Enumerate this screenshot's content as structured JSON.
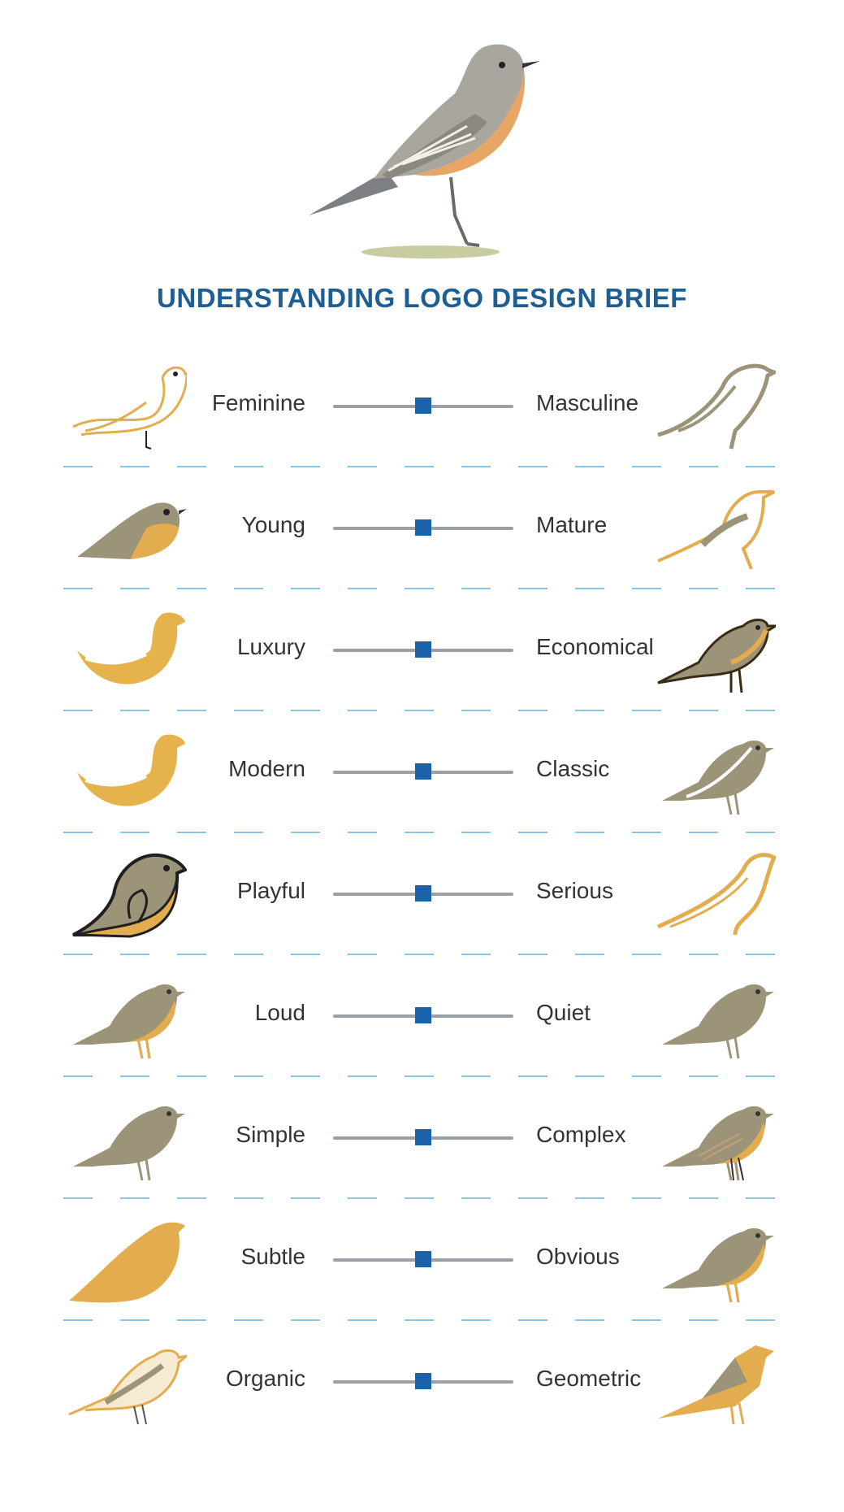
{
  "title": "UNDERSTANDING LOGO DESIGN BRIEF",
  "colors": {
    "title": "#1d5f93",
    "slider_track": "#9aa0a8",
    "slider_thumb": "#1b62a8",
    "divider": "#8cc5df",
    "bird_gold": "#e3ac4e",
    "bird_olive": "#9c9478"
  },
  "rows": [
    {
      "left": "Feminine",
      "right": "Masculine",
      "value": 0.5,
      "left_icon": "outline-gold-bird-icon",
      "right_icon": "outline-olive-bird-icon"
    },
    {
      "left": "Young",
      "right": "Mature",
      "value": 0.5,
      "left_icon": "chubby-bird-icon",
      "right_icon": "line-art-bird-icon"
    },
    {
      "left": "Luxury",
      "right": "Economical",
      "value": 0.5,
      "left_icon": "gradient-gold-bird-icon",
      "right_icon": "cartoon-bird-icon"
    },
    {
      "left": "Modern",
      "right": "Classic",
      "value": 0.5,
      "left_icon": "gradient-gold-bird-icon",
      "right_icon": "olive-wing-bird-icon"
    },
    {
      "left": "Playful",
      "right": "Serious",
      "value": 0.5,
      "left_icon": "playful-outline-bird-icon",
      "right_icon": "gold-stroke-bird-icon"
    },
    {
      "left": "Loud",
      "right": "Quiet",
      "value": 0.5,
      "left_icon": "two-tone-bird-icon",
      "right_icon": "olive-silhouette-bird-icon"
    },
    {
      "left": "Simple",
      "right": "Complex",
      "value": 0.5,
      "left_icon": "olive-silhouette-bird-icon",
      "right_icon": "detailed-bird-icon"
    },
    {
      "left": "Subtle",
      "right": "Obvious",
      "value": 0.5,
      "left_icon": "gold-shape-bird-icon",
      "right_icon": "two-tone-bird-icon"
    },
    {
      "left": "Organic",
      "right": "Geometric",
      "value": 0.5,
      "left_icon": "sketch-bird-icon",
      "right_icon": "geometric-bird-icon"
    }
  ]
}
